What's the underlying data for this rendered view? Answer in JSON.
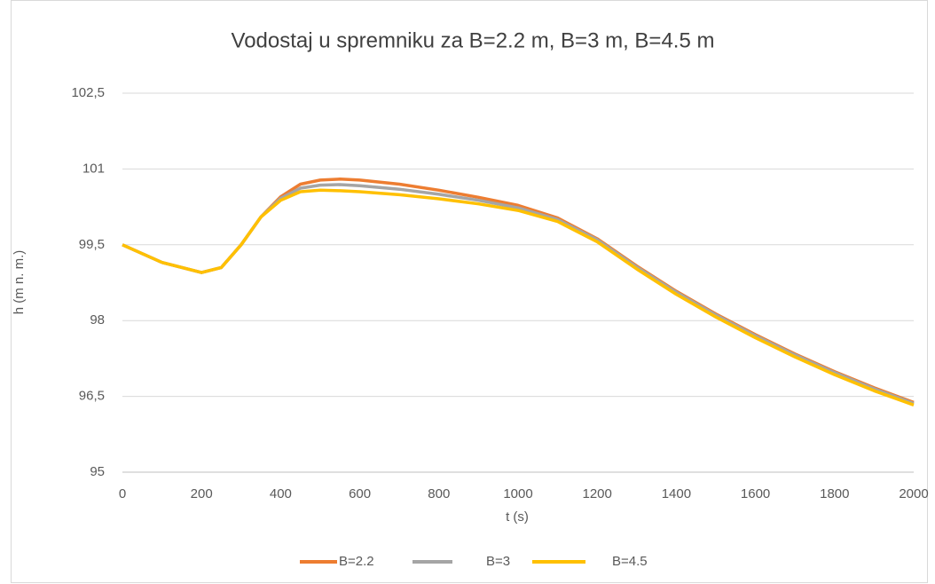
{
  "chart_data": {
    "type": "line",
    "title": "Vodostaj u spremniku za B=2.2 m, B=3 m, B=4.5 m",
    "x_label": "t (s)",
    "y_label": "h (m n. m.)",
    "x": [
      0,
      100,
      200,
      250,
      300,
      350,
      400,
      450,
      500,
      550,
      600,
      700,
      800,
      900,
      1000,
      1100,
      1200,
      1300,
      1400,
      1500,
      1600,
      1700,
      1800,
      1900,
      2000
    ],
    "series": [
      {
        "name": "B=2.2",
        "color": "#ED7D31",
        "values": [
          99.5,
          99.15,
          98.95,
          99.05,
          99.5,
          100.05,
          100.45,
          100.7,
          100.78,
          100.8,
          100.78,
          100.7,
          100.58,
          100.44,
          100.28,
          100.03,
          99.62,
          99.08,
          98.58,
          98.13,
          97.72,
          97.34,
          96.99,
          96.67,
          96.38
        ]
      },
      {
        "name": "B=3",
        "color": "#A5A5A5",
        "values": [
          99.5,
          99.15,
          98.95,
          99.05,
          99.5,
          100.05,
          100.42,
          100.62,
          100.68,
          100.69,
          100.67,
          100.6,
          100.5,
          100.38,
          100.23,
          100.0,
          99.6,
          99.06,
          98.56,
          98.11,
          97.7,
          97.32,
          96.97,
          96.65,
          96.36
        ]
      },
      {
        "name": "B=4.5",
        "color": "#FFC000",
        "values": [
          99.5,
          99.15,
          98.95,
          99.05,
          99.5,
          100.05,
          100.38,
          100.55,
          100.58,
          100.57,
          100.55,
          100.49,
          100.41,
          100.31,
          100.18,
          99.96,
          99.56,
          99.02,
          98.52,
          98.07,
          97.66,
          97.28,
          96.93,
          96.61,
          96.33
        ]
      }
    ],
    "xlim": [
      0,
      2000
    ],
    "xticks": [
      0,
      200,
      400,
      600,
      800,
      1000,
      1200,
      1400,
      1600,
      1800,
      2000
    ],
    "ylim": [
      95,
      102.5
    ],
    "yticks": [
      95,
      {
        "value": 96.5,
        "label": "96,5"
      },
      98,
      {
        "value": 99.5,
        "label": "99,5"
      },
      101,
      {
        "value": 102.5,
        "label": "102,5"
      }
    ],
    "grid": true,
    "legend": "bottom"
  }
}
